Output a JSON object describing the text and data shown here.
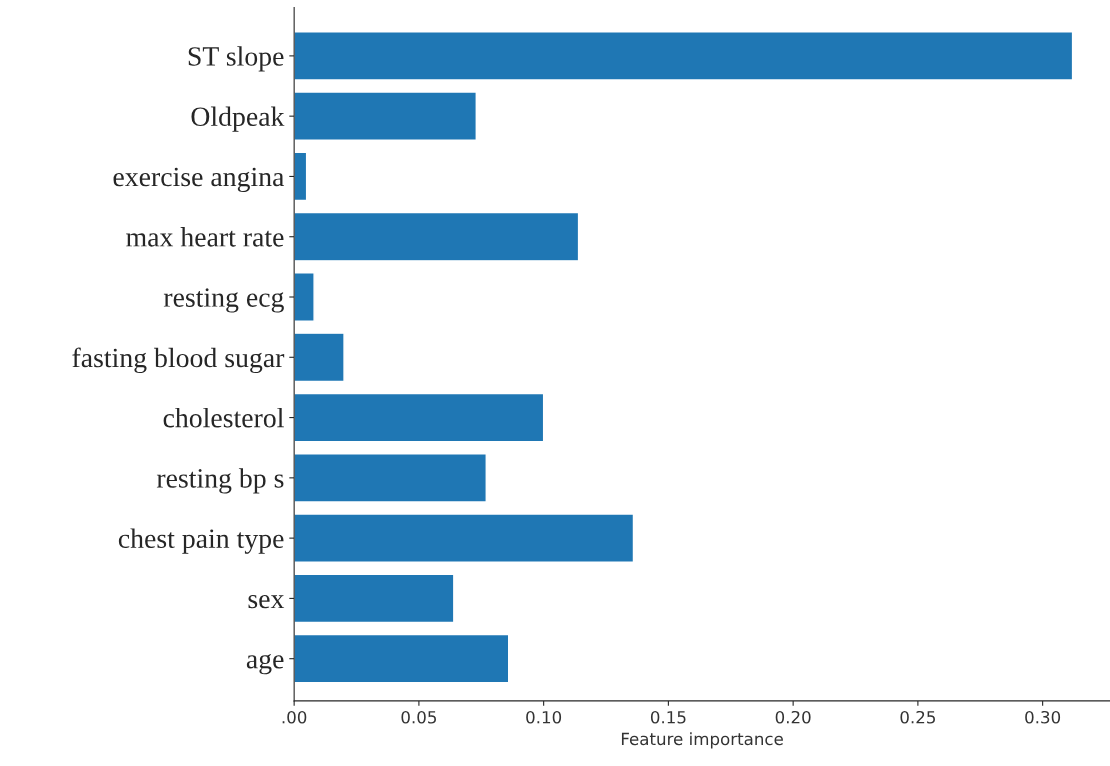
{
  "chart_data": {
    "type": "bar",
    "orientation": "horizontal",
    "xlabel": "Feature importance",
    "categories": [
      "ST slope",
      "Oldpeak",
      "exercise angina",
      "max heart rate",
      "resting ecg",
      "fasting blood sugar",
      "cholesterol",
      "resting bp s",
      "chest pain type",
      "sex",
      "age"
    ],
    "values": [
      0.312,
      0.073,
      0.005,
      0.114,
      0.008,
      0.02,
      0.1,
      0.077,
      0.136,
      0.064,
      0.086
    ],
    "color": "#1f77b4",
    "xlim": [
      0,
      0.327
    ],
    "xticks": [
      {
        "value": 0,
        "label": ".00"
      },
      0.05,
      {
        "value": 0.1,
        "label": "0.10"
      },
      0.15,
      {
        "value": 0.2,
        "label": "0.20"
      },
      0.25,
      {
        "value": 0.3,
        "label": "0.30"
      }
    ],
    "grid": false,
    "legend": false
  }
}
